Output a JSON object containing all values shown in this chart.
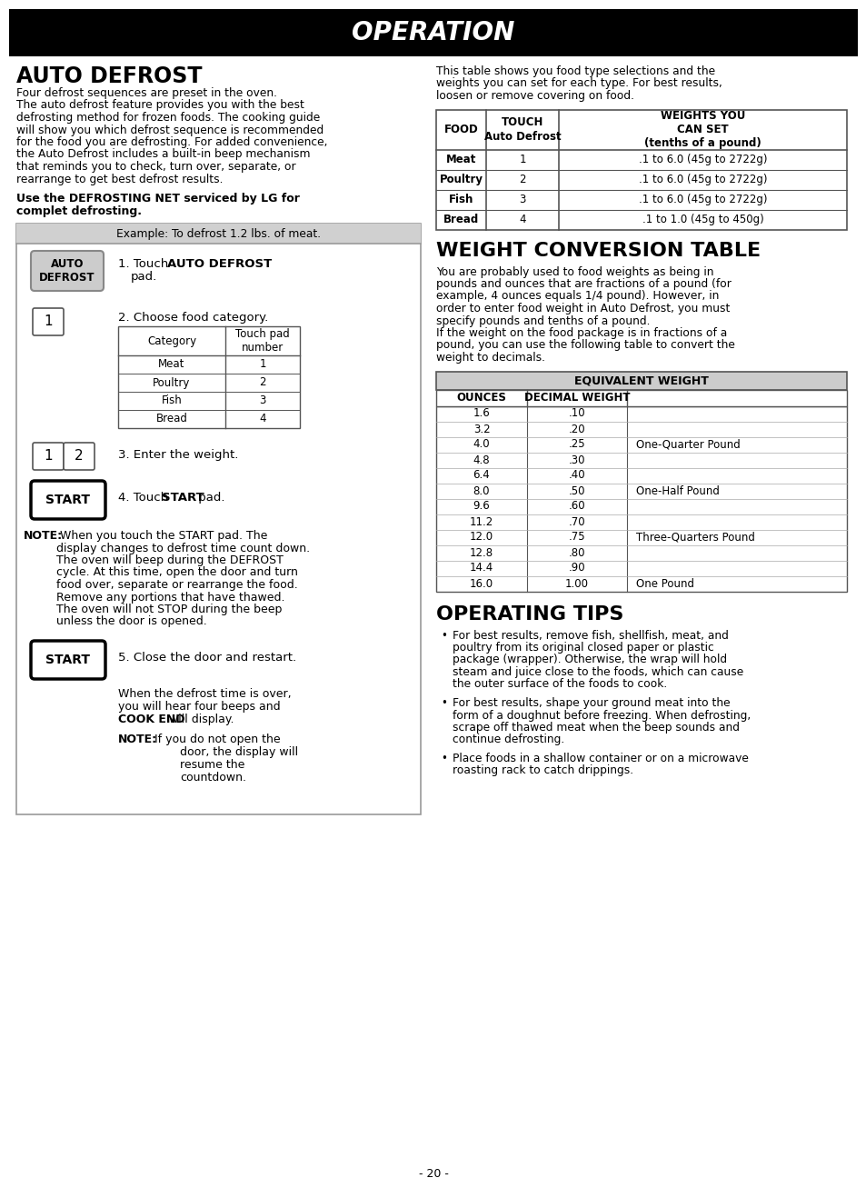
{
  "title": "OPERATION",
  "title_bg": "#000000",
  "title_color": "#ffffff",
  "page_bg": "#ffffff",
  "text_color": "#000000",
  "section1_title": "AUTO DEFROST",
  "section1_intro_lines": [
    "Four defrost sequences are preset in the oven.",
    "The auto defrost feature provides you with the best",
    "defrosting method for frozen foods. The cooking guide",
    "will show you which defrost sequence is recommended",
    "for the food you are defrosting. For added convenience,",
    "the Auto Defrost includes a built-in beep mechanism",
    "that reminds you to check, turn over, separate, or",
    "rearrange to get best defrost results."
  ],
  "section1_bold1": "Use the DEFROSTING NET serviced by LG for",
  "section1_bold2": "complet defrosting.",
  "example_header": "Example: To defrost 1.2 lbs. of meat.",
  "step1_btn": "AUTO\nDEFROST",
  "step1_a": "1. Touch  ",
  "step1_b": "AUTO DEFROST",
  "step1_c": "pad.",
  "step2_label": "2. Choose food category.",
  "cat_headers": [
    "Category",
    "Touch pad\nnumber"
  ],
  "cat_rows": [
    [
      "Meat",
      "1"
    ],
    [
      "Poultry",
      "2"
    ],
    [
      "Fish",
      "3"
    ],
    [
      "Bread",
      "4"
    ]
  ],
  "step3_label": "3. Enter the weight.",
  "step4_a": "4. Touch ",
  "step4_b": "START",
  "step4_c": " pad.",
  "note1_label": "NOTE:",
  "note1_lines": [
    " When you touch the START pad. The",
    "display changes to defrost time count down.",
    "The oven will beep during the DEFROST",
    "cycle. At this time, open the door and turn",
    "food over, separate or rearrange the food.",
    "Remove any portions that have thawed.",
    "The oven will not STOP during the beep",
    "unless the door is opened."
  ],
  "step5_label": "5. Close the door and restart.",
  "step5_lines": [
    "When the defrost time is over,",
    "you will hear four beeps and"
  ],
  "step5_bold": "COOK END",
  "step5_end": " will display.",
  "note2_label": "NOTE:",
  "note2_a": " If you do not open the",
  "note2_lines": [
    "door, the display will",
    "resume the",
    "countdown."
  ],
  "right_intro_lines": [
    "This table shows you food type selections and the",
    "weights you can set for each type. For best results,",
    "loosen or remove covering on food."
  ],
  "food_headers": [
    "FOOD",
    "TOUCH\nAuto Defrost",
    "WEIGHTS YOU\nCAN SET\n(tenths of a pound)"
  ],
  "food_rows": [
    [
      "Meat",
      "1",
      ".1 to 6.0 (45g to 2722g)"
    ],
    [
      "Poultry",
      "2",
      ".1 to 6.0 (45g to 2722g)"
    ],
    [
      "Fish",
      "3",
      ".1 to 6.0 (45g to 2722g)"
    ],
    [
      "Bread",
      "4",
      ".1 to 1.0 (45g to 450g)"
    ]
  ],
  "section2_title": "WEIGHT CONVERSION TABLE",
  "section2_intro_lines": [
    "You are probably used to food weights as being in",
    "pounds and ounces that are fractions of a pound (for",
    "example, 4 ounces equals 1/4 pound). However, in",
    "order to enter food weight in Auto Defrost, you must",
    "specify pounds and tenths of a pound.",
    "If the weight on the food package is in fractions of a",
    "pound, you can use the following table to convert the",
    "weight to decimals."
  ],
  "equiv_header": "EQUIVALENT WEIGHT",
  "equiv_col1": "OUNCES",
  "equiv_col2": "DECIMAL WEIGHT",
  "equiv_rows": [
    [
      "1.6",
      ".10",
      ""
    ],
    [
      "3.2",
      ".20",
      ""
    ],
    [
      "4.0",
      ".25",
      "One-Quarter Pound"
    ],
    [
      "4.8",
      ".30",
      ""
    ],
    [
      "6.4",
      ".40",
      ""
    ],
    [
      "8.0",
      ".50",
      "One-Half Pound"
    ],
    [
      "9.6",
      ".60",
      ""
    ],
    [
      "11.2",
      ".70",
      ""
    ],
    [
      "12.0",
      ".75",
      "Three-Quarters Pound"
    ],
    [
      "12.8",
      ".80",
      ""
    ],
    [
      "14.4",
      ".90",
      ""
    ],
    [
      "16.0",
      "1.00",
      "One Pound"
    ]
  ],
  "section3_title": "OPERATING TIPS",
  "tip1_lines": [
    "For best results, remove fish, shellfish, meat, and",
    "poultry from its original closed paper or plastic",
    "package (wrapper). Otherwise, the wrap will hold",
    "steam and juice close to the foods, which can cause",
    "the outer surface of the foods to cook."
  ],
  "tip2_lines": [
    "For best results, shape your ground meat into the",
    "form of a doughnut before freezing. When defrosting,",
    "scrape off thawed meat when the beep sounds and",
    "continue defrosting."
  ],
  "tip3_lines": [
    "Place foods in a shallow container or on a microwave",
    "roasting rack to catch drippings."
  ],
  "page_num": "- 20 -"
}
